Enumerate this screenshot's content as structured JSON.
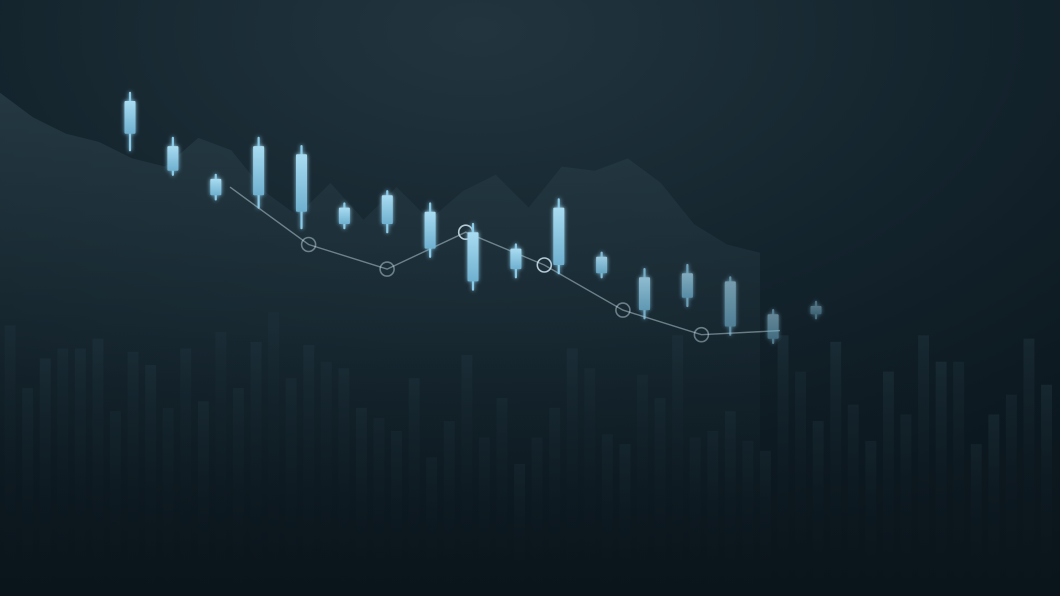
{
  "chart_data": {
    "type": "candlestick",
    "title": "",
    "xlabel": "",
    "ylabel": "",
    "axes_visible": false,
    "grid": false,
    "legend": "none",
    "candles": [
      {
        "open": 0.82,
        "close": 0.9,
        "high": 0.92,
        "low": 0.78
      },
      {
        "open": 0.73,
        "close": 0.79,
        "high": 0.81,
        "low": 0.72
      },
      {
        "open": 0.67,
        "close": 0.71,
        "high": 0.72,
        "low": 0.66
      },
      {
        "open": 0.67,
        "close": 0.79,
        "high": 0.81,
        "low": 0.64
      },
      {
        "open": 0.63,
        "close": 0.77,
        "high": 0.79,
        "low": 0.59
      },
      {
        "open": 0.6,
        "close": 0.64,
        "high": 0.65,
        "low": 0.59
      },
      {
        "open": 0.6,
        "close": 0.67,
        "high": 0.68,
        "low": 0.58
      },
      {
        "open": 0.54,
        "close": 0.63,
        "high": 0.65,
        "low": 0.52
      },
      {
        "open": 0.46,
        "close": 0.58,
        "high": 0.6,
        "low": 0.44
      },
      {
        "open": 0.49,
        "close": 0.54,
        "high": 0.55,
        "low": 0.47
      },
      {
        "open": 0.5,
        "close": 0.64,
        "high": 0.66,
        "low": 0.48
      },
      {
        "open": 0.48,
        "close": 0.52,
        "high": 0.53,
        "low": 0.47
      },
      {
        "open": 0.39,
        "close": 0.47,
        "high": 0.49,
        "low": 0.37
      },
      {
        "open": 0.42,
        "close": 0.48,
        "high": 0.5,
        "low": 0.4
      },
      {
        "open": 0.35,
        "close": 0.46,
        "high": 0.47,
        "low": 0.33
      },
      {
        "open": 0.32,
        "close": 0.38,
        "high": 0.39,
        "low": 0.31
      },
      {
        "open": 0.38,
        "close": 0.4,
        "high": 0.41,
        "low": 0.37
      }
    ],
    "trend_line": [
      0.69,
      0.55,
      0.49,
      0.58,
      0.5,
      0.39,
      0.33,
      0.34
    ],
    "background_area": [
      0.92,
      0.86,
      0.82,
      0.8,
      0.76,
      0.74,
      0.81,
      0.78,
      0.68,
      0.62,
      0.7,
      0.61,
      0.69,
      0.61,
      0.68,
      0.72,
      0.64,
      0.74,
      0.73,
      0.76,
      0.7,
      0.6,
      0.55,
      0.53
    ],
    "volume": [
      0.82,
      0.63,
      0.72,
      0.75,
      0.75,
      0.78,
      0.56,
      0.74,
      0.7,
      0.57,
      0.75,
      0.59,
      0.8,
      0.63,
      0.77,
      0.86,
      0.66,
      0.76,
      0.71,
      0.69,
      0.57,
      0.54,
      0.5,
      0.66,
      0.42,
      0.53,
      0.73,
      0.48,
      0.6,
      0.4,
      0.48,
      0.57,
      0.75,
      0.69,
      0.49,
      0.46,
      0.67,
      0.6,
      0.79,
      0.48,
      0.5,
      0.56,
      0.47,
      0.44,
      0.79,
      0.68,
      0.53,
      0.77,
      0.58,
      0.47,
      0.68,
      0.55,
      0.79,
      0.71,
      0.71,
      0.46,
      0.55,
      0.61,
      0.78,
      0.64
    ],
    "colors": {
      "background": "#0f1c24",
      "candle": "#8ccbe8",
      "trend": "#cfe6f2",
      "area": "#1e3039",
      "volume": "#172831"
    }
  }
}
